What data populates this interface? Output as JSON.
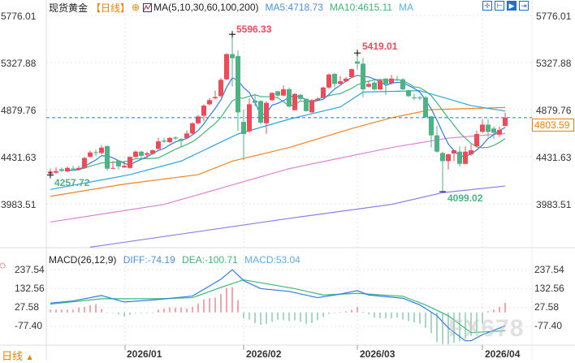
{
  "header": {
    "instrument": "现货黄金",
    "period": "【日线】",
    "add_icon": "circle-plus-icon",
    "indicator_icon": "line-chart-icon",
    "ma_params": "MA(5,10,30,60,100,200)",
    "ma5": "MA5:4718.73",
    "ma10": "MA10:4615.11",
    "ma_more": "MA"
  },
  "toolbar_icons": [
    "crosshair-icon",
    "range-icon",
    "play-icon",
    "exit-icon"
  ],
  "price_axis": [
    "5776.01",
    "5327.88",
    "4879.76",
    "4431.63",
    "3983.51"
  ],
  "last_price": "4803.59",
  "annotations": {
    "high1": "5596.33",
    "high2": "5419.01",
    "low1": "4257.72",
    "low2": "4099.02"
  },
  "macd": {
    "title": "MACD(26,12,9)",
    "diff": "DIFF:-74.19",
    "dea": "DEA:-100.71",
    "macd": "MACD:53.04",
    "axis": [
      "237.54",
      "132.56",
      "27.58",
      "-77.40"
    ]
  },
  "x_axis": [
    "2026/01",
    "2026/02",
    "2026/03",
    "2026/04"
  ],
  "bottom": {
    "period": "日线",
    "arrow": "▲"
  },
  "watermark": "FX678",
  "colors": {
    "up": "#ee4b5a",
    "down": "#4db384",
    "ma5": "#2b7de9",
    "ma10": "#3cb878",
    "ma30": "#2aa8e0",
    "ma60": "#f58220",
    "ma100": "#e080d8",
    "ma200": "#8a7cf0",
    "accent": "#f08000"
  },
  "chart_data": {
    "type": "candlestick",
    "price_range": [
      3983.51,
      5776.01
    ],
    "ohlc": [
      [
        4270,
        4320,
        4257.72,
        4290
      ],
      [
        4280,
        4330,
        4270,
        4295
      ],
      [
        4313,
        4330,
        4285,
        4297
      ],
      [
        4292,
        4340,
        4285,
        4325
      ],
      [
        4320,
        4345,
        4300,
        4315
      ],
      [
        4312,
        4345,
        4300,
        4325
      ],
      [
        4325,
        4430,
        4315,
        4420
      ],
      [
        4430,
        4490,
        4425,
        4472
      ],
      [
        4475,
        4500,
        4440,
        4470
      ],
      [
        4467,
        4540,
        4455,
        4518
      ],
      [
        4532,
        4540,
        4300,
        4318
      ],
      [
        4320,
        4390,
        4315,
        4325
      ],
      [
        4395,
        4395,
        4310,
        4340
      ],
      [
        4330,
        4390,
        4325,
        4345
      ],
      [
        4325,
        4435,
        4320,
        4430
      ],
      [
        4430,
        4490,
        4420,
        4480
      ],
      [
        4480,
        4490,
        4420,
        4440
      ],
      [
        4450,
        4480,
        4410,
        4465
      ],
      [
        4460,
        4500,
        4450,
        4493
      ],
      [
        4506,
        4610,
        4500,
        4578
      ],
      [
        4585,
        4610,
        4560,
        4575
      ],
      [
        4570,
        4620,
        4560,
        4610
      ],
      [
        4615,
        4625,
        4590,
        4605
      ],
      [
        4600,
        4610,
        4530,
        4582
      ],
      [
        4610,
        4680,
        4600,
        4653
      ],
      [
        4653,
        4760,
        4645,
        4750
      ],
      [
        4750,
        4830,
        4740,
        4815
      ],
      [
        4822,
        4930,
        4770,
        4918
      ],
      [
        4930,
        4990,
        4920,
        4970
      ],
      [
        4988,
        5060,
        4980,
        5000
      ],
      [
        5008,
        5180,
        5000,
        5163
      ],
      [
        5168,
        5415,
        5160,
        5408
      ],
      [
        5408,
        5596.33,
        5100,
        5369
      ],
      [
        5389,
        5440,
        4680,
        4854
      ],
      [
        4763,
        4880,
        4400,
        4648
      ],
      [
        4673,
        4990,
        4660,
        4931
      ],
      [
        4965,
        5030,
        4910,
        4945
      ],
      [
        4962,
        4970,
        4740,
        4756
      ],
      [
        4750,
        4960,
        4650,
        4944
      ],
      [
        4970,
        5045,
        4960,
        5039
      ],
      [
        5054,
        5060,
        5000,
        5013
      ],
      [
        5013,
        5110,
        5010,
        5073
      ],
      [
        5073,
        5090,
        4900,
        4910
      ],
      [
        4875,
        5035,
        4870,
        5029
      ],
      [
        5021,
        5030,
        4970,
        4982
      ],
      [
        4982,
        4990,
        4860,
        4866
      ],
      [
        4854,
        4980,
        4850,
        4970
      ],
      [
        4970,
        5000,
        4965,
        4982
      ],
      [
        4995,
        5100,
        4985,
        5090
      ],
      [
        5090,
        5225,
        5080,
        5214
      ],
      [
        5219,
        5230,
        5090,
        5124
      ],
      [
        5124,
        5200,
        5120,
        5150
      ],
      [
        5150,
        5190,
        5140,
        5175
      ],
      [
        5188,
        5270,
        5180,
        5265
      ],
      [
        5338,
        5419.01,
        5260,
        5317
      ],
      [
        5317,
        5370,
        5000,
        5073
      ],
      [
        5098,
        5150,
        5090,
        5124
      ],
      [
        5137,
        5150,
        5060,
        5073
      ],
      [
        5073,
        5165,
        5065,
        5158
      ],
      [
        5175,
        5180,
        5020,
        5124
      ],
      [
        5130,
        5210,
        5120,
        5175
      ],
      [
        5168,
        5200,
        5150,
        5165
      ],
      [
        5168,
        5180,
        5065,
        5073
      ],
      [
        5065,
        5070,
        5000,
        5008
      ],
      [
        4996,
        5030,
        4970,
        4990
      ],
      [
        4996,
        5010,
        4970,
        4990
      ],
      [
        4996,
        5010,
        4800,
        4807
      ],
      [
        4815,
        4820,
        4520,
        4635
      ],
      [
        4635,
        4725,
        4470,
        4480
      ],
      [
        4467,
        4480,
        4099.02,
        4390
      ],
      [
        4390,
        4460,
        4310,
        4455
      ],
      [
        4462,
        4500,
        4390,
        4493
      ],
      [
        4480,
        4530,
        4340,
        4364
      ],
      [
        4364,
        4530,
        4360,
        4480
      ],
      [
        4455,
        4550,
        4440,
        4493
      ],
      [
        4532,
        4680,
        4525,
        4648
      ],
      [
        4668,
        4790,
        4660,
        4737
      ],
      [
        4737,
        4790,
        4620,
        4668
      ],
      [
        4700,
        4720,
        4600,
        4660
      ],
      [
        4642,
        4720,
        4620,
        4686
      ],
      [
        4725,
        4850,
        4720,
        4803.59
      ]
    ],
    "ma30": [
      [
        0,
        4120
      ],
      [
        14,
        4261
      ],
      [
        23,
        4390
      ],
      [
        33,
        4648
      ],
      [
        42,
        4789
      ],
      [
        51,
        4905
      ],
      [
        55,
        5047
      ],
      [
        65,
        5060
      ],
      [
        70,
        4982
      ],
      [
        74,
        4918
      ],
      [
        80,
        4866
      ]
    ],
    "ma60": [
      [
        0,
        4055
      ],
      [
        13,
        4171
      ],
      [
        26,
        4261
      ],
      [
        32,
        4390
      ],
      [
        42,
        4519
      ],
      [
        53,
        4700
      ],
      [
        60,
        4802
      ],
      [
        67,
        4880
      ],
      [
        80,
        4900
      ]
    ],
    "ma100": [
      [
        0,
        3810
      ],
      [
        20,
        3978
      ],
      [
        42,
        4318
      ],
      [
        60,
        4519
      ],
      [
        70,
        4609
      ],
      [
        80,
        4653
      ]
    ],
    "ma200": [
      [
        7,
        3571
      ],
      [
        42,
        3845
      ],
      [
        60,
        3978
      ],
      [
        69,
        4090
      ],
      [
        80,
        4153
      ]
    ],
    "macd_hist": [
      16,
      16,
      16,
      16,
      16,
      27,
      31,
      40,
      45,
      20,
      -3,
      -3,
      -10,
      -22,
      -13,
      -4,
      -4,
      -4,
      -4,
      16,
      22,
      27,
      27,
      27,
      22,
      31,
      50,
      72,
      80,
      82,
      102,
      136,
      140,
      68,
      -33,
      -40,
      -58,
      -68,
      -63,
      -52,
      -40,
      -43,
      -48,
      -43,
      -52,
      -63,
      -58,
      -43,
      -25,
      -7,
      -3,
      3,
      7,
      16,
      31,
      4,
      -10,
      -28,
      -33,
      -33,
      -33,
      -28,
      -40,
      -48,
      -55,
      -63,
      -85,
      -115,
      -163,
      -175,
      -175,
      -168,
      -160,
      -145,
      -130,
      -108,
      -60,
      7,
      16,
      31,
      53.04
    ],
    "diff": [
      [
        0,
        52
      ],
      [
        4,
        64
      ],
      [
        9,
        94
      ],
      [
        13,
        58
      ],
      [
        19,
        72
      ],
      [
        25,
        91
      ],
      [
        30,
        184
      ],
      [
        32,
        237
      ],
      [
        34,
        177
      ],
      [
        37,
        132
      ],
      [
        42,
        117
      ],
      [
        47,
        82
      ],
      [
        51,
        102
      ],
      [
        54,
        121
      ],
      [
        56,
        97
      ],
      [
        62,
        79
      ],
      [
        65,
        42
      ],
      [
        68,
        -18
      ],
      [
        70,
        -85
      ],
      [
        73,
        -157
      ],
      [
        74,
        -157
      ],
      [
        76,
        -123
      ],
      [
        80,
        -74.19
      ]
    ],
    "dea": [
      [
        0,
        46
      ],
      [
        9,
        76
      ],
      [
        19,
        76
      ],
      [
        25,
        82
      ],
      [
        30,
        139
      ],
      [
        34,
        181
      ],
      [
        43,
        132
      ],
      [
        48,
        97
      ],
      [
        54,
        106
      ],
      [
        62,
        90
      ],
      [
        66,
        42
      ],
      [
        70,
        -18
      ],
      [
        74,
        -112
      ],
      [
        80,
        -100.71
      ]
    ],
    "macd_range": [
      -77.4,
      237.54
    ]
  }
}
